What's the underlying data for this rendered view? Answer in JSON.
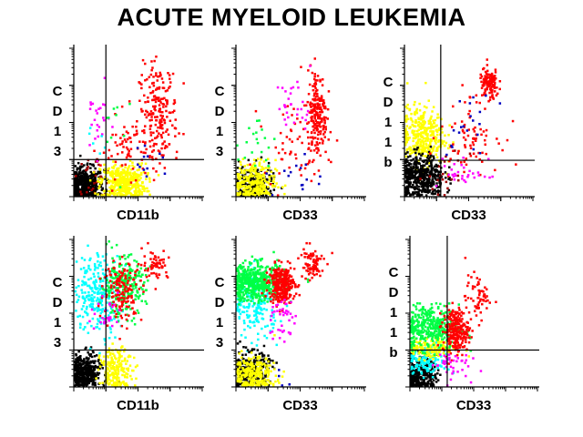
{
  "chart_data": {
    "type": "scatter",
    "title": "ACUTE MYELOID LEUKEMIA",
    "axis_scale": "log",
    "axis_range_decades": [
      0,
      4
    ],
    "colors": {
      "black": "#000000",
      "yellow": "#ffff00",
      "red": "#ff0000",
      "darkred": "#a00000",
      "magenta": "#ff00ff",
      "cyan": "#00ffff",
      "green": "#00ff44",
      "blue": "#0000c0"
    },
    "panels": [
      {
        "xlabel": "CD11b",
        "ylabel": "CD13",
        "quadrant": [
          1,
          1
        ],
        "clusters": [
          {
            "color": "black",
            "cx": 0.3,
            "cy": 0.25,
            "sx": 0.3,
            "sy": 0.25,
            "n": 500
          },
          {
            "color": "darkred",
            "cx": 0.6,
            "cy": 0.5,
            "sx": 0.3,
            "sy": 0.3,
            "n": 30
          },
          {
            "color": "yellow",
            "cx": 1.5,
            "cy": 0.35,
            "sx": 0.35,
            "sy": 0.25,
            "n": 400
          },
          {
            "color": "red",
            "cx": 2.6,
            "cy": 2.3,
            "sx": 0.3,
            "sy": 0.6,
            "n": 200
          },
          {
            "color": "red",
            "cx": 1.8,
            "cy": 1.3,
            "sx": 0.5,
            "sy": 0.4,
            "n": 80
          },
          {
            "color": "magenta",
            "cx": 0.7,
            "cy": 2.0,
            "sx": 0.2,
            "sy": 0.45,
            "n": 25
          },
          {
            "color": "cyan",
            "cx": 0.6,
            "cy": 1.5,
            "sx": 0.2,
            "sy": 0.3,
            "n": 6
          },
          {
            "color": "green",
            "cx": 1.3,
            "cy": 2.2,
            "sx": 0.3,
            "sy": 0.8,
            "n": 10
          },
          {
            "color": "blue",
            "cx": 2.3,
            "cy": 0.8,
            "sx": 0.3,
            "sy": 0.2,
            "n": 12
          }
        ]
      },
      {
        "xlabel": "CD33",
        "ylabel": "CD13",
        "quadrant": null,
        "clusters": [
          {
            "color": "black",
            "cx": 0.5,
            "cy": 0.3,
            "sx": 0.3,
            "sy": 0.25,
            "n": 220
          },
          {
            "color": "yellow",
            "cx": 0.5,
            "cy": 0.35,
            "sx": 0.35,
            "sy": 0.3,
            "n": 250
          },
          {
            "color": "red",
            "cx": 2.5,
            "cy": 2.2,
            "sx": 0.15,
            "sy": 0.6,
            "n": 200
          },
          {
            "color": "red",
            "cx": 1.8,
            "cy": 1.5,
            "sx": 0.5,
            "sy": 0.5,
            "n": 60
          },
          {
            "color": "magenta",
            "cx": 1.8,
            "cy": 2.4,
            "sx": 0.3,
            "sy": 0.4,
            "n": 30
          },
          {
            "color": "green",
            "cx": 0.6,
            "cy": 1.4,
            "sx": 0.3,
            "sy": 0.4,
            "n": 20
          },
          {
            "color": "blue",
            "cx": 1.9,
            "cy": 0.5,
            "sx": 0.4,
            "sy": 0.3,
            "n": 15
          }
        ]
      },
      {
        "xlabel": "CD33",
        "ylabel": "CD11b",
        "quadrant": [
          1.13,
          0.98
        ],
        "clusters": [
          {
            "color": "yellow",
            "cx": 0.5,
            "cy": 1.6,
            "sx": 0.35,
            "sy": 0.4,
            "n": 350
          },
          {
            "color": "black",
            "cx": 0.5,
            "cy": 0.5,
            "sx": 0.35,
            "sy": 0.3,
            "n": 450
          },
          {
            "color": "red",
            "cx": 2.6,
            "cy": 3.0,
            "sx": 0.15,
            "sy": 0.2,
            "n": 120
          },
          {
            "color": "red",
            "cx": 2.0,
            "cy": 1.7,
            "sx": 0.45,
            "sy": 0.5,
            "n": 80
          },
          {
            "color": "darkred",
            "cx": 1.3,
            "cy": 0.5,
            "sx": 0.3,
            "sy": 0.3,
            "n": 20
          },
          {
            "color": "magenta",
            "cx": 1.8,
            "cy": 0.6,
            "sx": 0.4,
            "sy": 0.2,
            "n": 30
          },
          {
            "color": "blue",
            "cx": 2.0,
            "cy": 1.8,
            "sx": 0.4,
            "sy": 0.5,
            "n": 20
          }
        ]
      },
      {
        "xlabel": "CD11b",
        "ylabel": "CD13",
        "quadrant": [
          1,
          1
        ],
        "clusters": [
          {
            "color": "black",
            "cx": 0.3,
            "cy": 0.35,
            "sx": 0.25,
            "sy": 0.25,
            "n": 400
          },
          {
            "color": "yellow",
            "cx": 1.3,
            "cy": 0.4,
            "sx": 0.25,
            "sy": 0.3,
            "n": 200
          },
          {
            "color": "cyan",
            "cx": 0.7,
            "cy": 2.5,
            "sx": 0.35,
            "sy": 0.55,
            "n": 250
          },
          {
            "color": "green",
            "cx": 1.5,
            "cy": 2.7,
            "sx": 0.35,
            "sy": 0.4,
            "n": 250
          },
          {
            "color": "red",
            "cx": 1.5,
            "cy": 2.6,
            "sx": 0.3,
            "sy": 0.4,
            "n": 150
          },
          {
            "color": "red",
            "cx": 2.5,
            "cy": 3.3,
            "sx": 0.2,
            "sy": 0.2,
            "n": 60
          },
          {
            "color": "magenta",
            "cx": 1.0,
            "cy": 2.0,
            "sx": 0.25,
            "sy": 0.3,
            "n": 30
          }
        ]
      },
      {
        "xlabel": "CD33",
        "ylabel": "CD13",
        "quadrant": null,
        "clusters": [
          {
            "color": "cyan",
            "cx": 0.6,
            "cy": 2.2,
            "sx": 0.35,
            "sy": 0.45,
            "n": 200
          },
          {
            "color": "green",
            "cx": 0.6,
            "cy": 2.8,
            "sx": 0.45,
            "sy": 0.25,
            "n": 500
          },
          {
            "color": "red",
            "cx": 1.4,
            "cy": 2.75,
            "sx": 0.2,
            "sy": 0.25,
            "n": 300
          },
          {
            "color": "red",
            "cx": 2.3,
            "cy": 3.3,
            "sx": 0.2,
            "sy": 0.25,
            "n": 80
          },
          {
            "color": "magenta",
            "cx": 1.4,
            "cy": 1.8,
            "sx": 0.2,
            "sy": 0.35,
            "n": 40
          },
          {
            "color": "black",
            "cx": 0.4,
            "cy": 0.4,
            "sx": 0.3,
            "sy": 0.25,
            "n": 300
          },
          {
            "color": "yellow",
            "cx": 0.5,
            "cy": 0.3,
            "sx": 0.35,
            "sy": 0.25,
            "n": 250
          },
          {
            "color": "blue",
            "cx": 1.4,
            "cy": 0.3,
            "sx": 0.2,
            "sy": 0.2,
            "n": 4
          }
        ]
      },
      {
        "xlabel": "CD33",
        "ylabel": "CD11b",
        "quadrant": [
          1.17,
          1
        ],
        "clusters": [
          {
            "color": "black",
            "cx": 0.3,
            "cy": 0.3,
            "sx": 0.25,
            "sy": 0.25,
            "n": 300
          },
          {
            "color": "cyan",
            "cx": 0.5,
            "cy": 0.7,
            "sx": 0.35,
            "sy": 0.2,
            "n": 150
          },
          {
            "color": "yellow",
            "cx": 0.6,
            "cy": 1.0,
            "sx": 0.4,
            "sy": 0.15,
            "n": 150
          },
          {
            "color": "green",
            "cx": 0.6,
            "cy": 1.6,
            "sx": 0.45,
            "sy": 0.3,
            "n": 350
          },
          {
            "color": "red",
            "cx": 1.4,
            "cy": 1.5,
            "sx": 0.2,
            "sy": 0.3,
            "n": 250
          },
          {
            "color": "red",
            "cx": 2.1,
            "cy": 2.4,
            "sx": 0.2,
            "sy": 0.3,
            "n": 60
          },
          {
            "color": "magenta",
            "cx": 1.2,
            "cy": 0.6,
            "sx": 0.3,
            "sy": 0.2,
            "n": 40
          }
        ]
      }
    ]
  }
}
